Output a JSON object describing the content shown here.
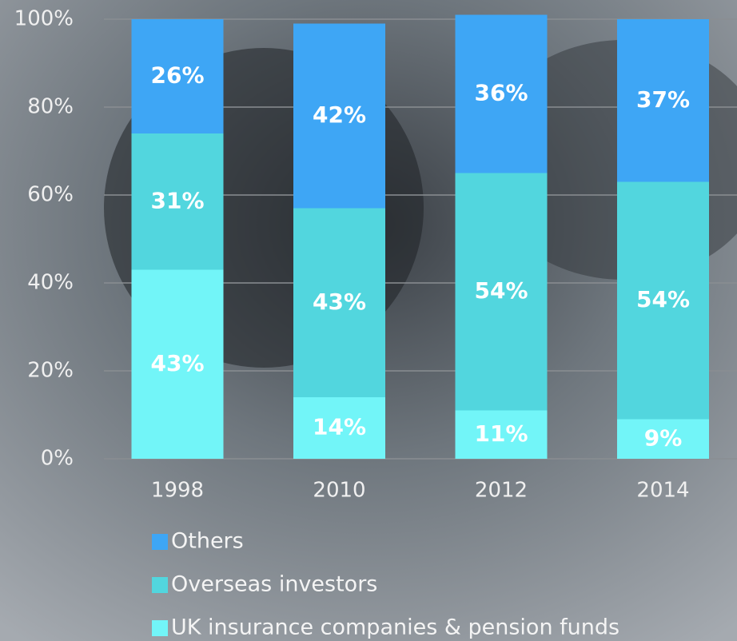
{
  "chart_data": {
    "type": "stacked_bar",
    "categories": [
      "1998",
      "2010",
      "2012",
      "2014"
    ],
    "series": [
      {
        "name": "Others",
        "color": "#3ea6f5",
        "values": [
          26,
          42,
          36,
          37
        ],
        "value_labels": [
          "26%",
          "42%",
          "36%",
          "37%"
        ]
      },
      {
        "name": "Overseas investors",
        "color": "#52d6de",
        "values": [
          31,
          43,
          54,
          54
        ],
        "value_labels": [
          "31%",
          "43%",
          "54%",
          "54%"
        ]
      },
      {
        "name": "UK insurance companies & pension funds",
        "color": "#72f5f8",
        "values": [
          43,
          14,
          11,
          9
        ],
        "value_labels": [
          "43%",
          "14%",
          "11%",
          "9%"
        ]
      }
    ],
    "ylim": [
      0,
      100
    ],
    "yticks": [
      {
        "value": 0,
        "label": "0%"
      },
      {
        "value": 20,
        "label": "20%"
      },
      {
        "value": 40,
        "label": "40%"
      },
      {
        "value": 60,
        "label": "60%"
      },
      {
        "value": 80,
        "label": "80%"
      },
      {
        "value": 100,
        "label": "100%"
      }
    ],
    "grid": true
  }
}
